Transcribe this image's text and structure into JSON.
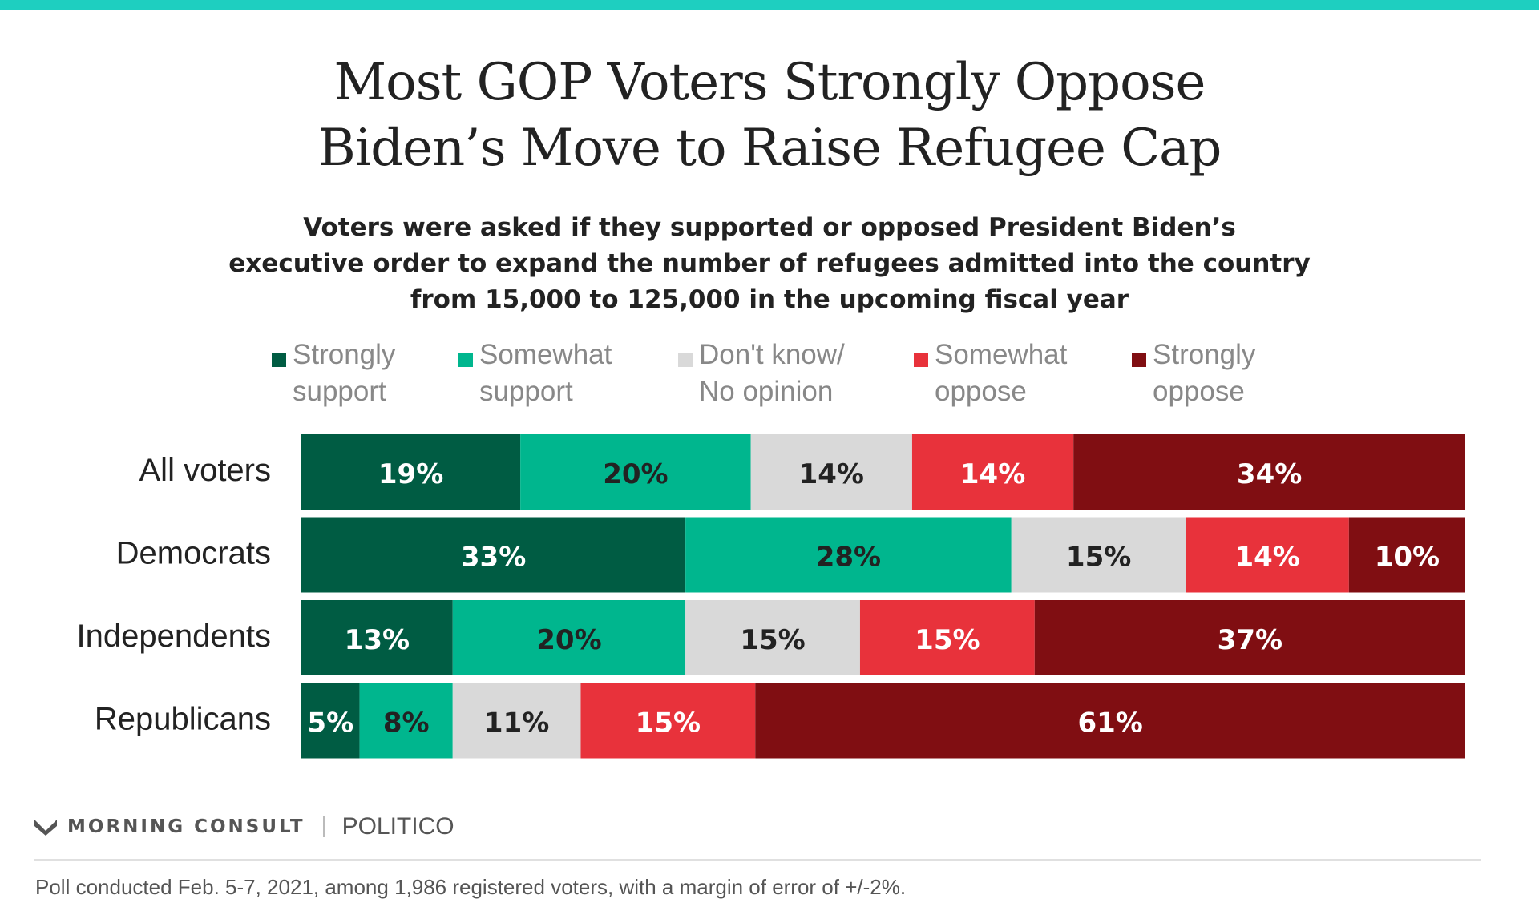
{
  "chart_data": {
    "type": "bar",
    "stacked": true,
    "orientation": "horizontal",
    "title": [
      "Most GOP Voters Strongly Oppose",
      "Biden’s Move to Raise Refugee Cap"
    ],
    "subtitle": [
      "Voters were asked if they supported or opposed President Biden’s",
      "executive order to expand the number of refugees admitted into the country",
      "from 15,000 to 125,000 in the upcoming fiscal year"
    ],
    "categories": [
      "All voters",
      "Democrats",
      "Independents",
      "Republicans"
    ],
    "series": [
      {
        "name": "Strongly\nsupport",
        "color": "#005c43",
        "label_color": "#ffffff",
        "values": [
          19,
          33,
          13,
          5
        ]
      },
      {
        "name": "Somewhat\nsupport",
        "color": "#00b68e",
        "label_color": "#222222",
        "values": [
          20,
          28,
          20,
          8
        ]
      },
      {
        "name": "Don't know/\nNo opinion",
        "color": "#d9d9d9",
        "label_color": "#222222",
        "values": [
          14,
          15,
          15,
          11
        ]
      },
      {
        "name": "Somewhat\noppose",
        "color": "#e8323b",
        "label_color": "#ffffff",
        "values": [
          14,
          14,
          15,
          15
        ]
      },
      {
        "name": "Strongly\noppose",
        "color": "#800e12",
        "label_color": "#ffffff",
        "values": [
          34,
          10,
          37,
          61
        ]
      }
    ],
    "value_suffix": "%",
    "legend_position": "top"
  },
  "brand": {
    "morning_consult": "MORNING CONSULT",
    "politico": "POLITICO"
  },
  "footnote": "Poll conducted Feb. 5-7, 2021, among 1,986 registered voters, with a margin of error of +/-2%.",
  "colors": {
    "accent_rule": "#1ecfc0"
  }
}
